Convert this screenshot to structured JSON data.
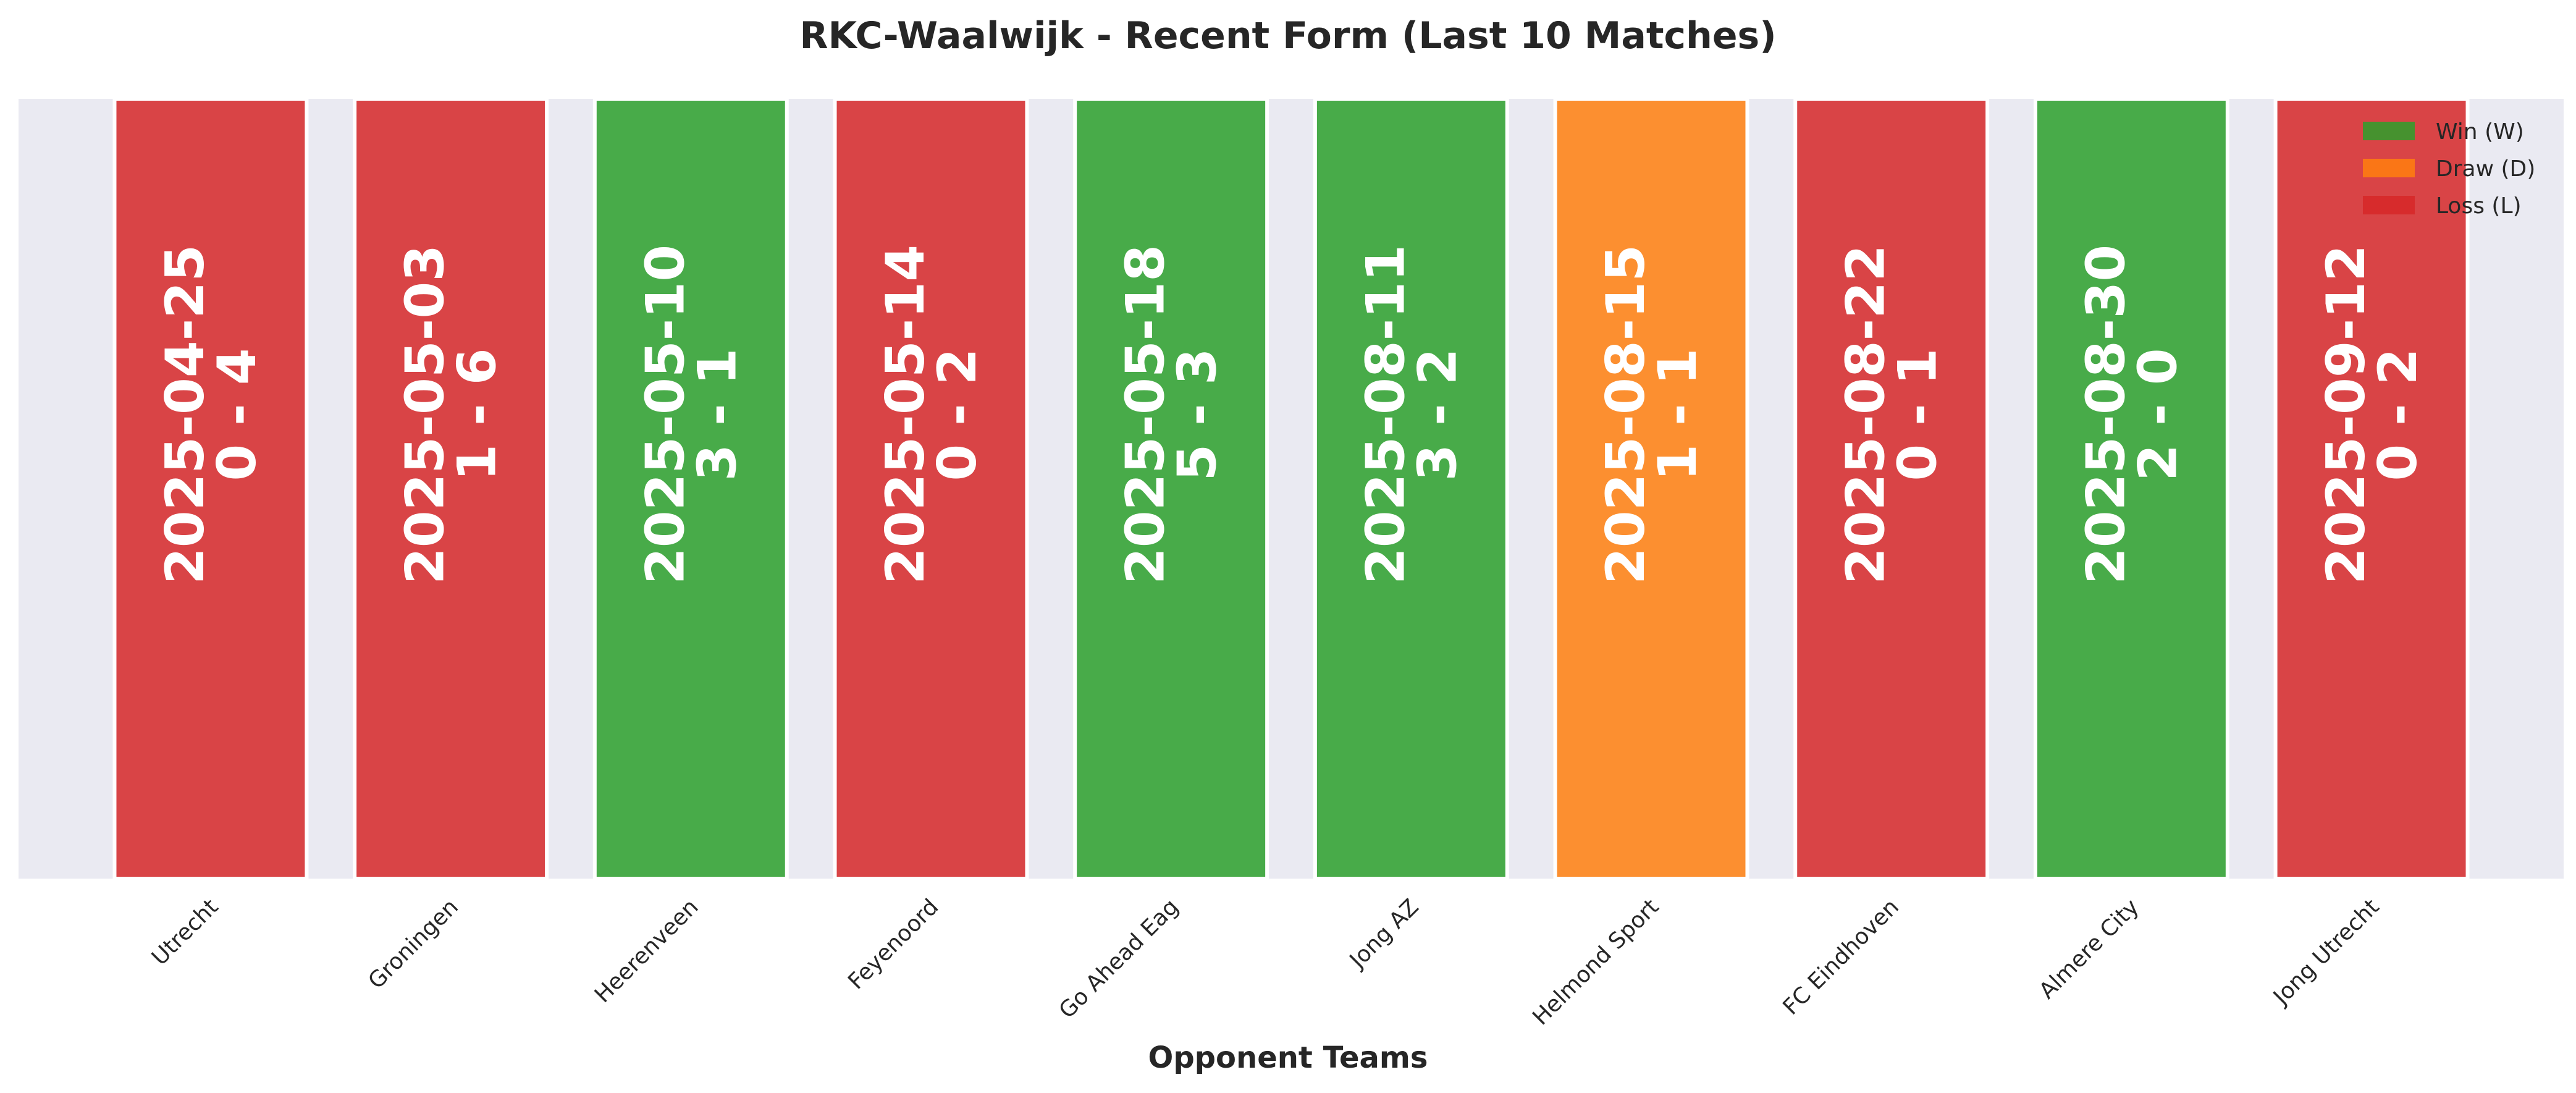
{
  "chart_data": {
    "type": "bar",
    "title": "RKC-Waalwijk - Recent Form (Last 10 Matches)",
    "xlabel": "Opponent Teams",
    "ylabel": "",
    "ylim": [
      0,
      1
    ],
    "grid": false,
    "legend_placement": "top-right",
    "categories": [
      "Utrecht",
      "Groningen",
      "Heerenveen",
      "Feyenoord",
      "Go Ahead Eag",
      "Jong AZ",
      "Helmond Sport",
      "FC Eindhoven",
      "Almere City",
      "Jong Utrecht"
    ],
    "values": [
      1,
      1,
      1,
      1,
      1,
      1,
      1,
      1,
      1,
      1
    ],
    "results": [
      "L",
      "L",
      "W",
      "L",
      "W",
      "W",
      "D",
      "L",
      "W",
      "L"
    ],
    "dates": [
      "2025-04-25",
      "2025-05-03",
      "2025-05-10",
      "2025-05-14",
      "2025-05-18",
      "2025-08-11",
      "2025-08-15",
      "2025-08-22",
      "2025-08-30",
      "2025-09-12"
    ],
    "scores": [
      "0 - 4",
      "1 - 6",
      "3 - 1",
      "0 - 2",
      "5 - 3",
      "3 - 2",
      "1 - 1",
      "0 - 1",
      "2 - 0",
      "0 - 2"
    ],
    "legend": [
      {
        "key": "W",
        "label": "Win (W)",
        "color": "#2ca02c"
      },
      {
        "key": "D",
        "label": "Draw (D)",
        "color": "#ff7f0e"
      },
      {
        "key": "L",
        "label": "Loss (L)",
        "color": "#d62728"
      }
    ],
    "colors": {
      "W": "#2ca02c",
      "D": "#ff7f0e",
      "L": "#d62728",
      "plot_background": "#eaeaf2"
    }
  }
}
